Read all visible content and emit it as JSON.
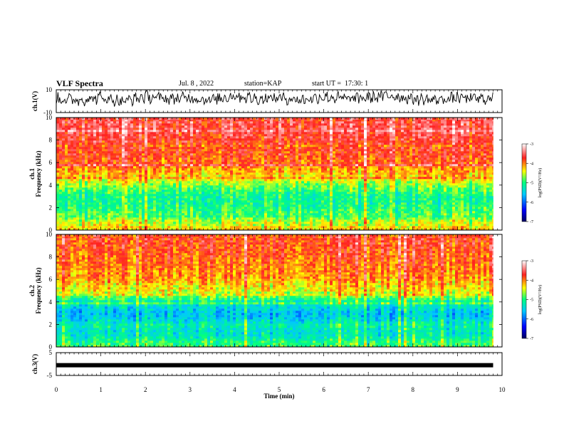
{
  "header": {
    "title": "VLF Spectra",
    "date": "Jul. 8 , 2022",
    "station": "station=KAP",
    "start": "start UT =  17:30: 1"
  },
  "colors": {
    "waveform": "#000000",
    "colormap": [
      "#000060",
      "#0000ff",
      "#00c8ff",
      "#00ff80",
      "#ffff00",
      "#ff2020",
      "#ffffff"
    ]
  },
  "chart_data": [
    {
      "type": "line",
      "name": "ch1-waveform",
      "ylabel": "ch.1(V)",
      "ylim": [
        -10,
        10
      ],
      "yticks": [
        "10",
        "-10"
      ],
      "xlim": [
        0,
        10
      ],
      "x": [
        0,
        0.5,
        1,
        1.5,
        2,
        2.5,
        3,
        3.5,
        4,
        4.5,
        5,
        5.5,
        6,
        6.5,
        7,
        7.5,
        8,
        8.5,
        9,
        9.5,
        9.8
      ],
      "y": [
        2,
        1,
        3,
        0,
        4,
        2,
        3,
        1,
        5,
        2,
        3,
        1,
        4,
        2,
        3,
        5,
        2,
        1,
        3,
        2,
        2
      ]
    },
    {
      "type": "heatmap",
      "name": "ch1-spectrogram",
      "ylabel": "ch.1\nFrequency (kHz)",
      "ylim": [
        0,
        10
      ],
      "yticks": [
        "0",
        "2",
        "4",
        "6",
        "8",
        "10"
      ],
      "xlim": [
        0,
        10
      ],
      "data_end_min": 9.8,
      "colorbar": {
        "label": "log(PSD)(V²/Hz)",
        "range": [
          -7,
          -3
        ],
        "ticks": [
          "-3",
          "-4",
          "-5",
          "-6",
          "-7"
        ]
      },
      "freq_profile_khz": [
        0,
        0.5,
        1,
        1.5,
        2,
        2.5,
        3,
        3.5,
        4,
        4.5,
        5,
        5.5,
        6,
        7,
        8,
        9,
        10
      ],
      "log_psd_profile": [
        -4.3,
        -4.4,
        -4.7,
        -4.9,
        -5.0,
        -5.1,
        -5.1,
        -4.9,
        -4.7,
        -4.4,
        -4.2,
        -4.1,
        -3.9,
        -3.8,
        -3.7,
        -3.6,
        -3.6
      ]
    },
    {
      "type": "heatmap",
      "name": "ch2-spectrogram",
      "ylabel": "ch.2\nFrequency (kHz)",
      "ylim": [
        0,
        10
      ],
      "yticks": [
        "0",
        "2",
        "4",
        "6",
        "8",
        "10"
      ],
      "xlim": [
        0,
        10
      ],
      "data_end_min": 9.8,
      "colorbar": {
        "label": "log(PSD)(V²/Hz)",
        "range": [
          -7,
          -3
        ],
        "ticks": [
          "-3",
          "-4",
          "-5",
          "-6",
          "-7"
        ]
      },
      "freq_profile_khz": [
        0,
        0.5,
        1,
        1.5,
        2,
        2.5,
        3,
        3.5,
        4,
        4.5,
        5,
        5.5,
        6,
        7,
        8,
        9,
        10
      ],
      "log_psd_profile": [
        -4.9,
        -5.0,
        -5.3,
        -5.3,
        -5.2,
        -5.5,
        -5.6,
        -5.4,
        -5.2,
        -4.7,
        -4.4,
        -4.3,
        -4.1,
        -4.0,
        -3.9,
        -3.8,
        -3.8
      ]
    },
    {
      "type": "line",
      "name": "ch3-waveform",
      "ylabel": "ch.3(V)",
      "ylim": [
        -5,
        5
      ],
      "yticks": [
        "5",
        "-5"
      ],
      "xlim": [
        0,
        10
      ],
      "x": [
        0,
        9.8
      ],
      "y": [
        -0.5,
        -0.5
      ]
    },
    {
      "name": "time-axis",
      "xlabel": "Time (min)",
      "xticks": [
        "0",
        "1",
        "2",
        "3",
        "4",
        "5",
        "6",
        "7",
        "8",
        "9",
        "10"
      ]
    }
  ]
}
